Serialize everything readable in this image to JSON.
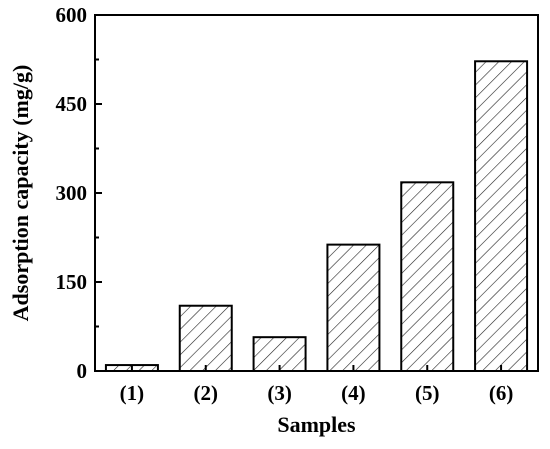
{
  "chart_data": {
    "type": "bar",
    "categories": [
      "(1)",
      "(2)",
      "(3)",
      "(4)",
      "(5)",
      "(6)"
    ],
    "values": [
      10,
      110,
      57,
      213,
      318,
      522
    ],
    "title": "",
    "xlabel": "Samples",
    "ylabel": "Adsorption capacity (mg/g)",
    "ylim": [
      0,
      600
    ],
    "yticks": [
      0,
      150,
      300,
      450,
      600
    ],
    "ytick_labels": [
      "0",
      "150",
      "300",
      "450",
      "600"
    ],
    "bar_fill": "diagonal-hatch",
    "bar_color": "#000000",
    "grid": false,
    "legend": "none"
  }
}
